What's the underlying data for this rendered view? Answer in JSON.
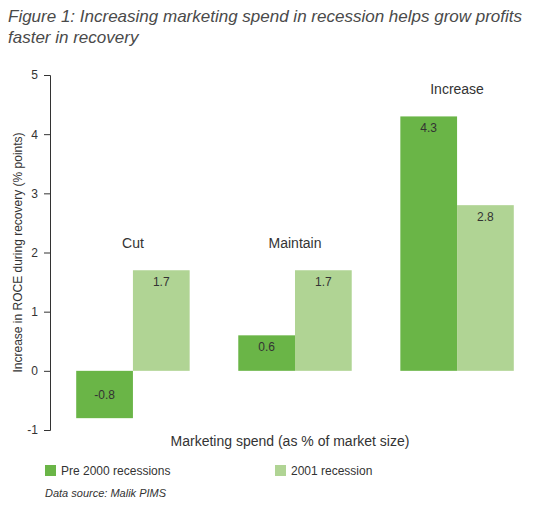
{
  "chart_data": {
    "type": "bar",
    "title": "Figure 1: Increasing marketing spend in recession helps grow profits faster in recovery",
    "x_label": "Marketing spend (as % of market size)",
    "y_label": "Increase in ROCE during recovery (% points)",
    "source": "Data source: Malik PIMS",
    "categories": [
      "Cut",
      "Maintain",
      "Increase"
    ],
    "series": [
      {
        "name": "Pre 2000 recessions",
        "color": "#6ab547",
        "values": [
          -0.8,
          0.6,
          4.3
        ]
      },
      {
        "name": "2001 recession",
        "color": "#b0d494",
        "values": [
          1.7,
          1.7,
          2.8
        ]
      }
    ],
    "ylim": [
      -1,
      5
    ],
    "yticks": [
      -1,
      0,
      1,
      2,
      3,
      4,
      5
    ],
    "grid": false,
    "legend": "bottom",
    "data_labels": true
  }
}
